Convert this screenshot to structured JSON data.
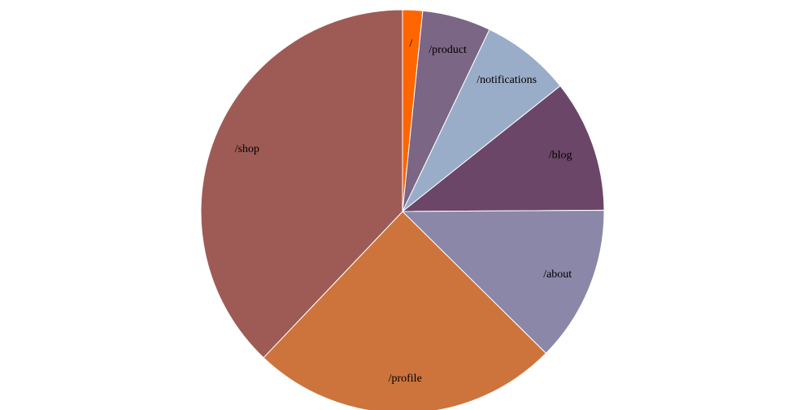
{
  "chart_data": {
    "type": "pie",
    "start": "top",
    "direction": "clockwise",
    "slices": [
      {
        "label": "/",
        "value": 1.6,
        "color": "#ff6600"
      },
      {
        "label": "/product",
        "value": 5.5,
        "color": "#7b6685"
      },
      {
        "label": "/notifications",
        "value": 7.2,
        "color": "#9aadc8"
      },
      {
        "label": "/blog",
        "value": 10.6,
        "color": "#6b4668"
      },
      {
        "label": "/about",
        "value": 12.5,
        "color": "#8b87a8"
      },
      {
        "label": "/profile",
        "value": 24.7,
        "color": "#cd743d"
      },
      {
        "label": "/shop",
        "value": 37.9,
        "color": "#9e5b55"
      }
    ]
  }
}
